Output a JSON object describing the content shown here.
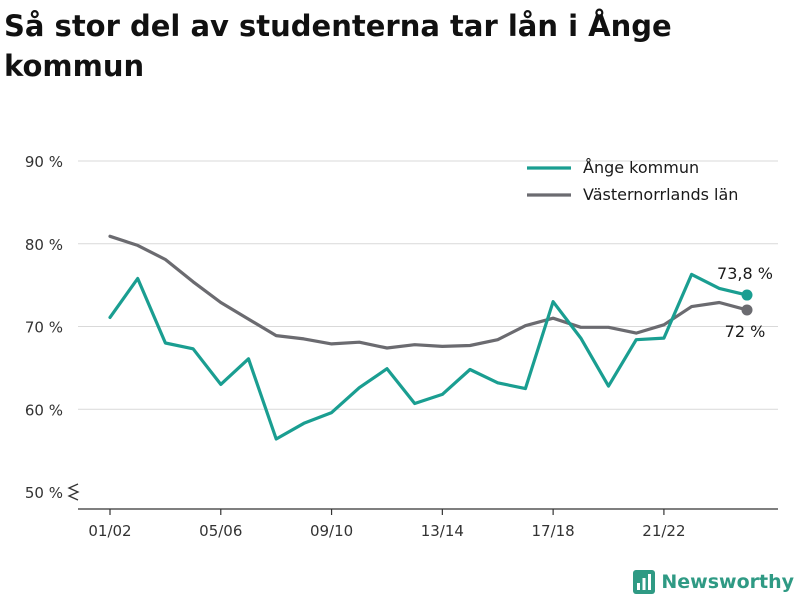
{
  "title": "Så stor del av studenterna tar lån i Ånge kommun",
  "brand": "Newsworthy",
  "chart_data": {
    "type": "line",
    "categories": [
      "01/02",
      "02/03",
      "03/04",
      "04/05",
      "05/06",
      "06/07",
      "07/08",
      "08/09",
      "09/10",
      "10/11",
      "11/12",
      "12/13",
      "13/14",
      "14/15",
      "15/16",
      "16/17",
      "17/18",
      "18/19",
      "19/20",
      "20/21",
      "21/22",
      "22/23",
      "23/24",
      "24/25"
    ],
    "x_tick_labels": [
      "01/02",
      "05/06",
      "09/10",
      "13/14",
      "17/18",
      "21/22"
    ],
    "y_ticks": [
      50,
      60,
      70,
      80,
      90
    ],
    "y_tick_labels": [
      "50 %",
      "60 %",
      "70 %",
      "80 %",
      "90 %"
    ],
    "ylim": [
      50,
      90
    ],
    "axis_break": true,
    "grid": true,
    "legend_position": "top-right",
    "series": [
      {
        "name": "Ånge kommun",
        "color": "#1a9e91",
        "end_label": "73,8 %",
        "values": [
          71.1,
          75.8,
          68.0,
          67.3,
          63.0,
          66.1,
          56.4,
          58.3,
          59.6,
          62.6,
          64.9,
          60.7,
          61.8,
          64.8,
          63.2,
          62.5,
          73.0,
          68.6,
          62.8,
          68.4,
          68.6,
          76.3,
          74.6,
          73.8
        ]
      },
      {
        "name": "Västernorrlands län",
        "color": "#6b6b70",
        "end_label": "72 %",
        "values": [
          80.9,
          79.8,
          78.1,
          75.4,
          72.9,
          70.9,
          68.9,
          68.5,
          67.9,
          68.1,
          67.4,
          67.8,
          67.6,
          67.7,
          68.4,
          70.1,
          71.0,
          69.9,
          69.9,
          69.2,
          70.2,
          72.4,
          72.9,
          72.0
        ]
      }
    ]
  }
}
